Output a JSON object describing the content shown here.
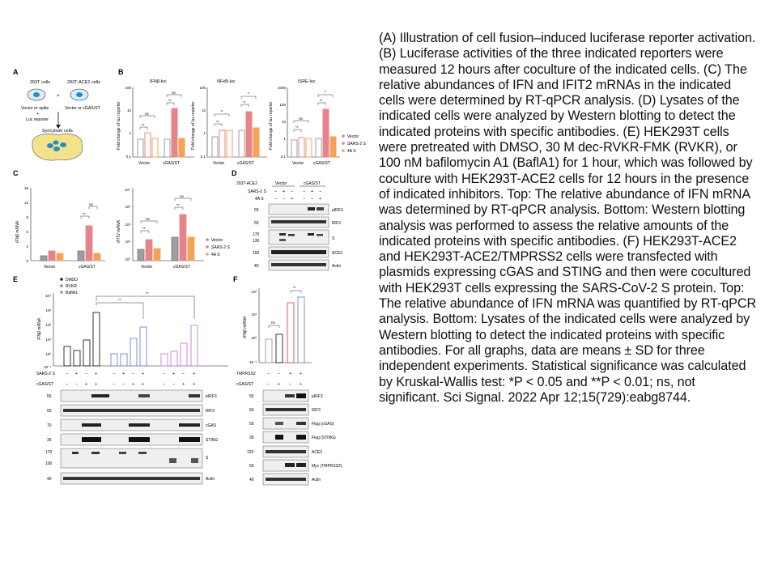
{
  "caption": "(A) Illustration of cell fusion–induced luciferase reporter activation. (B) Luciferase activities of the three indicated reporters were measured 12 hours after coculture of the indicated cells. (C) The relative abundances of IFN and IFIT2 mRNAs in the indicated cells were determined by RT-qPCR analysis. (D) Lysates of the indicated cells were analyzed by Western blotting to detect the indicated proteins with specific antibodies. (E) HEK293T cells were pretreated with DMSO, 30 M dec-RVKR-FMK (RVKR), or 100 nM bafilomycin A1 (BaflA1) for 1 hour, which was followed by coculture with HEK293T-ACE2 cells for 12 hours in the presence of indicated inhibitors. Top: The relative abundance of IFN mRNA was determined by RT-qPCR analysis. Bottom: Western blotting analysis was performed to assess the relative amounts of the indicated proteins with specific antibodies. (F) HEK293T-ACE2 and HEK293T-ACE2/TMPRSS2 cells were transfected with plasmids expressing cGAS and STING and then were cocultured with HEK293T cells expressing the SARS-CoV-2 S protein. Top: The relative abundance of IFN mRNA was quantified by RT-qPCR analysis. Bottom: Lysates of the indicated cells were analyzed by Western blotting to detect the indicated proteins with specific antibodies. For all graphs, data are means ± SD for three independent experiments. Statistical significance was calculated by Kruskal-Wallis test: *P < 0.05 and **P < 0.01; ns, not significant. Sci Signal. 2022 Apr 12;15(729):eabg8744.",
  "panelA": {
    "letter": "A",
    "cell1": "293T cells",
    "cell2": "293T-ACE2 cells",
    "vec1": "Vector or spike",
    "plus": "+",
    "luc": "Luc reporter",
    "vec2": "Vector or cGAS/ST",
    "syncytium": "Syncytium cells"
  },
  "panelB": {
    "letter": "B",
    "ylabel": "Fold change of luc reporter",
    "ns": "ns",
    "star": "*",
    "dstar": "**",
    "cat1": "Vector",
    "cat2": "cGAS/ST",
    "legend": [
      "Vector",
      "SARS-2 S",
      "4A S"
    ],
    "plots": [
      {
        "title": "IFNβ-luc",
        "ticks": [
          "100",
          "10",
          "1",
          "0.1"
        ]
      },
      {
        "title": "NFκB-luc",
        "ticks": [
          "100",
          "10",
          "1",
          "0.1"
        ]
      },
      {
        "title": "ISRE-luc",
        "ticks": [
          "1000",
          "100",
          "10",
          "1",
          "0.1"
        ]
      }
    ]
  },
  "panelC": {
    "letter": "C",
    "ylabel1": "IFNβ mRNA",
    "ylabel2": "IFIT2 mRNA",
    "ticks1": [
      "15",
      "12",
      "9",
      "6",
      "3",
      "0"
    ],
    "ticks2": [
      "10⁴",
      "10³",
      "10²",
      "10¹",
      "10⁰"
    ],
    "ns": "ns",
    "dstar": "**",
    "cat1": "Vector",
    "cat2": "cGAS/ST",
    "legend": [
      "Vector",
      "SARS-2 S",
      "4A S"
    ]
  },
  "panelD": {
    "letter": "D",
    "rowlabels": [
      "293T-ACE2",
      "SARS-2 S",
      "4A S"
    ],
    "groups": [
      "Vector",
      "cGAS/ST"
    ],
    "signs_r1": [
      "−",
      "+",
      "−",
      "−",
      "+",
      "−"
    ],
    "signs_r2": [
      "−",
      "−",
      "+",
      "−",
      "−",
      "+"
    ],
    "bands": [
      "pIRF3",
      "IRF3",
      "S",
      "ACE2",
      "Actin"
    ],
    "mw": [
      "55",
      "55",
      "170",
      "130",
      "100",
      "40"
    ]
  },
  "panelE": {
    "letter": "E",
    "legend": [
      "DMSO",
      "RVKR",
      "BaflA1"
    ],
    "ylabel": "IFNβ mRNA",
    "ticks": [
      "10⁴",
      "10³",
      "10²",
      "10¹",
      "10⁰",
      "10⁻¹"
    ],
    "dstar": "**",
    "row1label": "SARS-2 S",
    "row2label": "cGAS/ST",
    "row1": [
      "−",
      "+",
      "−",
      "+",
      "−",
      "+",
      "−",
      "+",
      "−",
      "+",
      "−",
      "+"
    ],
    "row2": [
      "−",
      "−",
      "+",
      "+",
      "−",
      "−",
      "+",
      "+",
      "−",
      "−",
      "+",
      "+"
    ],
    "bands": [
      "pIRF3",
      "IRF3",
      "cGAS",
      "STING",
      "S",
      "Actin"
    ],
    "mw": [
      "55",
      "55",
      "70",
      "35",
      "170",
      "100",
      "40"
    ]
  },
  "panelF": {
    "letter": "F",
    "ylabel": "IFNβ mRNA",
    "ticks": [
      "10²",
      "10¹",
      "10⁰",
      "10⁻¹"
    ],
    "ns": "ns",
    "dstar": "**",
    "row1label": "TMPRSS2",
    "row2label": "cGAS/ST",
    "row1": [
      "−",
      "−",
      "+",
      "+"
    ],
    "row2": [
      "−",
      "+",
      "−",
      "+"
    ],
    "bands": [
      "pIRF3",
      "IRF3",
      "Flag (cGAS)",
      "Flag (STING)",
      "ACE2",
      "Myc (TMPRSS2)",
      "Actin"
    ],
    "mw": [
      "55",
      "55",
      "55",
      "35",
      "120",
      "55",
      "40"
    ]
  },
  "colors": {
    "vector": "#9e9e9e",
    "sars2s": "#e8838a",
    "fourA": "#f4a259",
    "dmso": "#222222",
    "rvkr": "#6f86d6",
    "bafl": "#c77dd3"
  }
}
